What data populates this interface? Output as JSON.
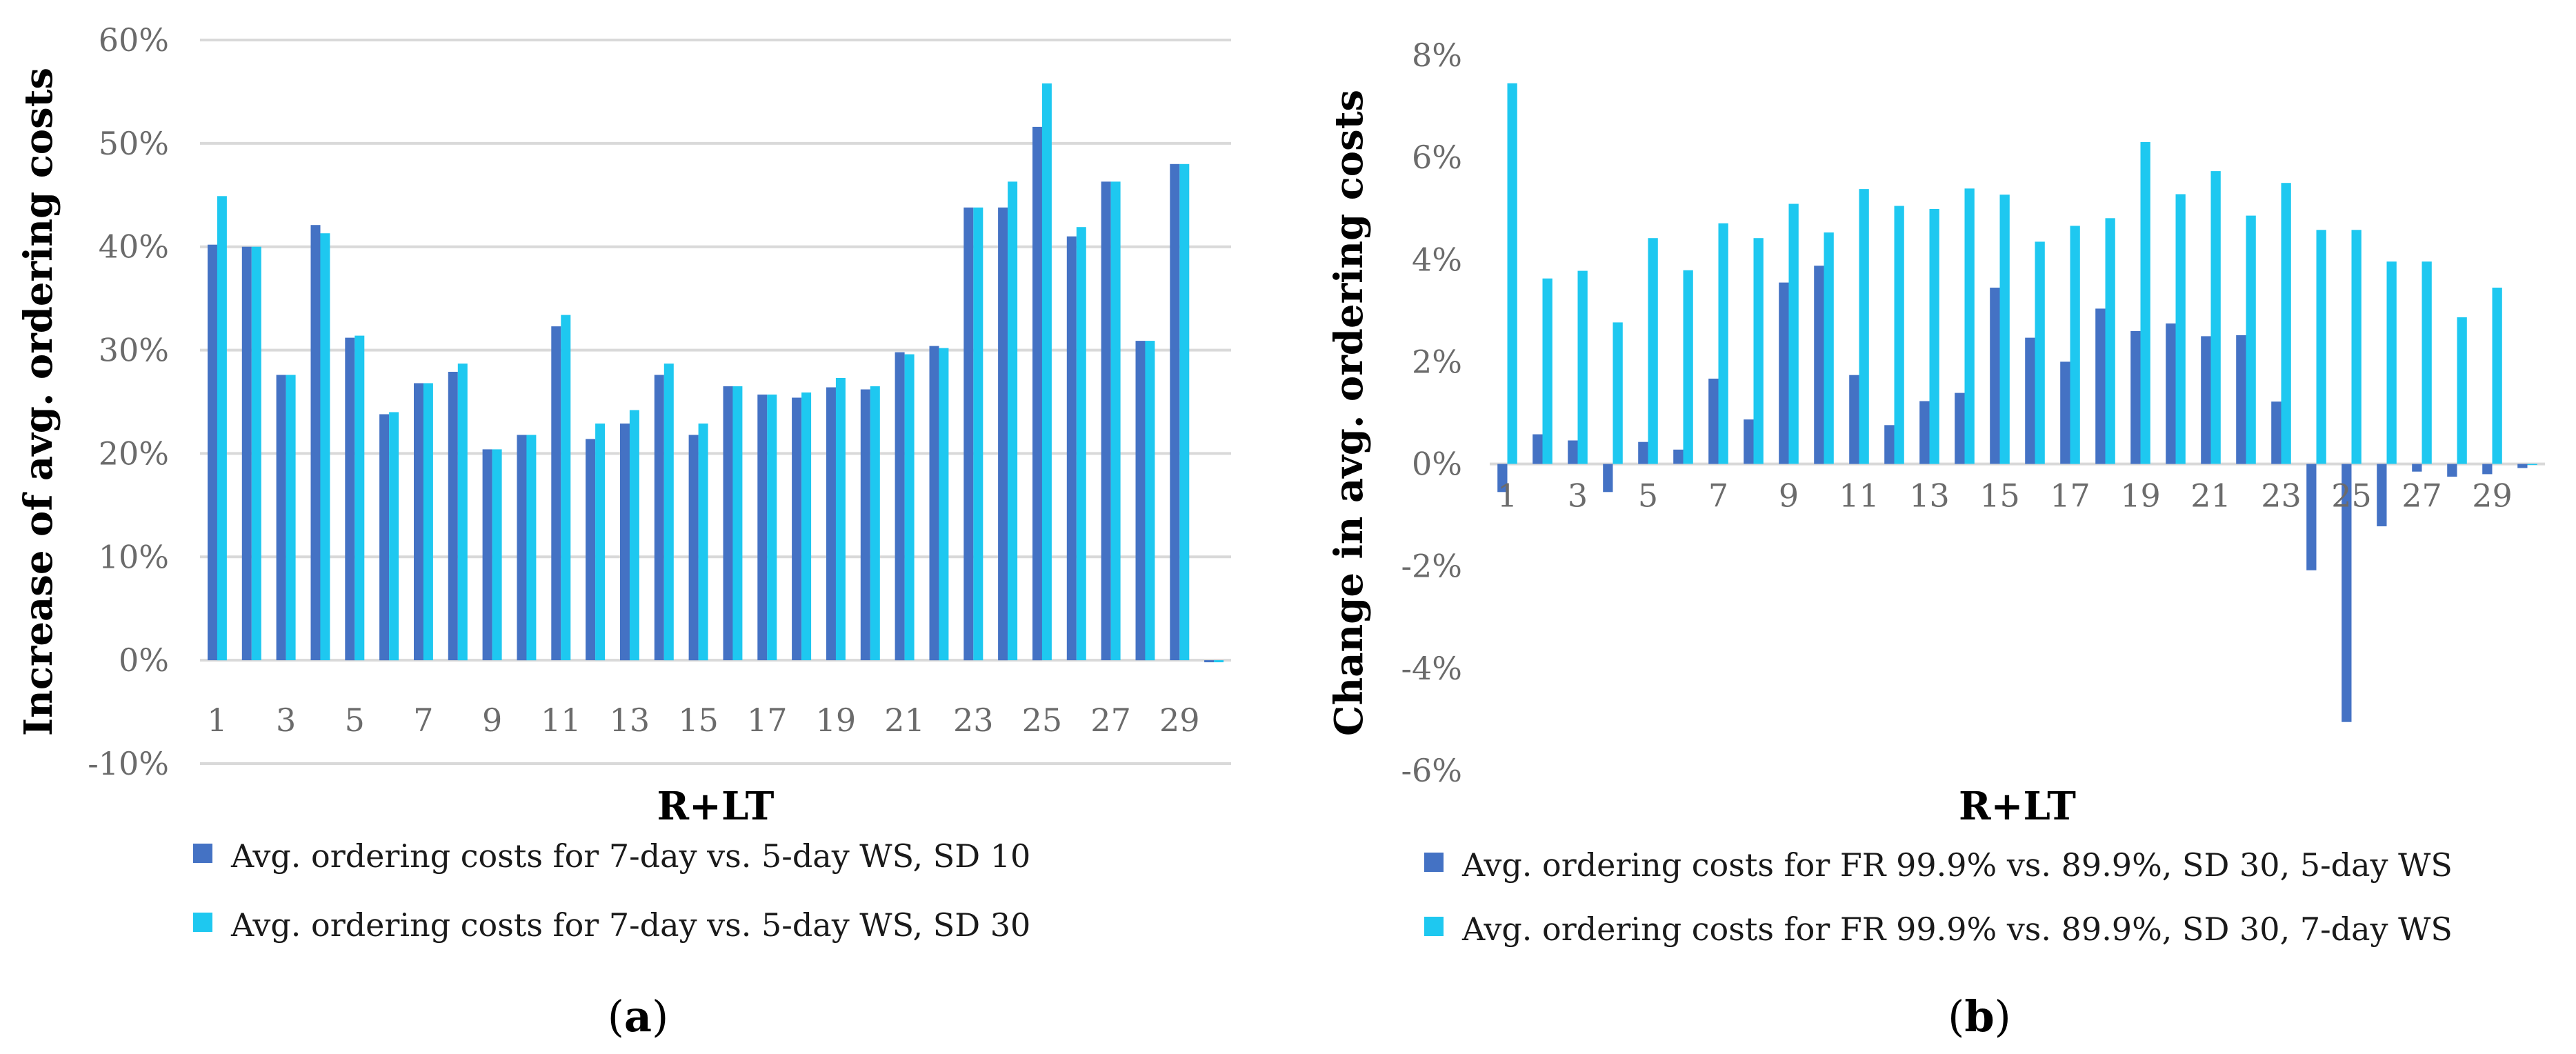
{
  "chart_data": [
    {
      "type": "bar",
      "panel_label_prefix": "(",
      "panel_label_letter": "a",
      "panel_label_suffix": ")",
      "xlabel": "R+LT",
      "ylabel": "Increase of avg. ordering costs",
      "ylim": [
        -10,
        60
      ],
      "y_ticks": [
        "-10%",
        "0%",
        "10%",
        "20%",
        "30%",
        "40%",
        "50%",
        "60%"
      ],
      "x_ticks": [
        "1",
        "3",
        "5",
        "7",
        "9",
        "11",
        "13",
        "15",
        "17",
        "19",
        "21",
        "23",
        "25",
        "27",
        "29"
      ],
      "grid": true,
      "legend_position": "bottom",
      "colors": [
        "#4472c4",
        "#1ec8f0"
      ],
      "x": [
        1,
        2,
        3,
        4,
        5,
        6,
        7,
        8,
        9,
        10,
        11,
        12,
        13,
        14,
        15,
        16,
        17,
        18,
        19,
        20,
        21,
        22,
        23,
        24,
        25,
        26,
        27,
        28,
        29,
        30
      ],
      "series": [
        {
          "name": "Avg. ordering costs for 7-day vs. 5-day WS, SD 10",
          "values": [
            40.2,
            40,
            27.6,
            42.1,
            31.2,
            23.8,
            26.8,
            27.9,
            20.4,
            21.8,
            32.3,
            21.4,
            22.9,
            27.6,
            21.8,
            26.5,
            25.7,
            25.4,
            26.4,
            26.2,
            29.8,
            30.4,
            43.8,
            43.8,
            51.6,
            41,
            46.3,
            30.9,
            48,
            -0.2
          ]
        },
        {
          "name": "Avg. ordering costs for 7-day vs. 5-day WS, SD 30",
          "values": [
            44.9,
            40,
            27.6,
            41.3,
            31.4,
            24,
            26.8,
            28.7,
            20.4,
            21.8,
            33.4,
            22.9,
            24.2,
            28.7,
            22.9,
            26.5,
            25.7,
            25.9,
            27.3,
            26.5,
            29.6,
            30.2,
            43.8,
            46.3,
            55.8,
            41.9,
            46.3,
            30.9,
            48,
            -0.2
          ]
        }
      ]
    },
    {
      "type": "bar",
      "panel_label_prefix": "(",
      "panel_label_letter": "b",
      "panel_label_suffix": ")",
      "xlabel": "R+LT",
      "ylabel": "Change in avg. ordering costs",
      "ylim": [
        -6,
        8
      ],
      "y_ticks": [
        "-6%",
        "-4%",
        "-2%",
        "0%",
        "2%",
        "4%",
        "6%",
        "8%"
      ],
      "x_ticks": [
        "1",
        "3",
        "5",
        "7",
        "9",
        "11",
        "13",
        "15",
        "17",
        "19",
        "21",
        "23",
        "25",
        "27",
        "29"
      ],
      "grid": false,
      "legend_position": "bottom",
      "colors": [
        "#4472c4",
        "#1ec8f0"
      ],
      "x": [
        1,
        2,
        3,
        4,
        5,
        6,
        7,
        8,
        9,
        10,
        11,
        12,
        13,
        14,
        15,
        16,
        17,
        18,
        19,
        20,
        21,
        22,
        23,
        24,
        25,
        26,
        27,
        28,
        29,
        30
      ],
      "series": [
        {
          "name": "Avg. ordering costs for FR 99.9% vs. 89.9%, SD 30, 5-day WS",
          "values": [
            -0.55,
            0.58,
            0.46,
            -0.55,
            0.43,
            0.28,
            1.67,
            0.87,
            3.55,
            3.88,
            1.74,
            0.76,
            1.23,
            1.39,
            3.45,
            2.47,
            2.0,
            3.04,
            2.6,
            2.75,
            2.5,
            2.52,
            1.22,
            -2.08,
            -5.05,
            -1.22,
            -0.15,
            -0.25,
            -0.2,
            -0.08
          ]
        },
        {
          "name": "Avg. ordering costs for FR 99.9% vs. 89.9%, SD 30, 7-day WS",
          "values": [
            7.45,
            3.63,
            3.78,
            2.77,
            4.42,
            3.79,
            4.71,
            4.42,
            5.09,
            4.53,
            5.38,
            5.05,
            4.99,
            5.39,
            5.27,
            4.35,
            4.66,
            4.81,
            6.3,
            5.28,
            5.73,
            4.86,
            5.5,
            4.58,
            4.58,
            3.96,
            3.96,
            2.87,
            3.45,
            0
          ]
        }
      ]
    }
  ]
}
